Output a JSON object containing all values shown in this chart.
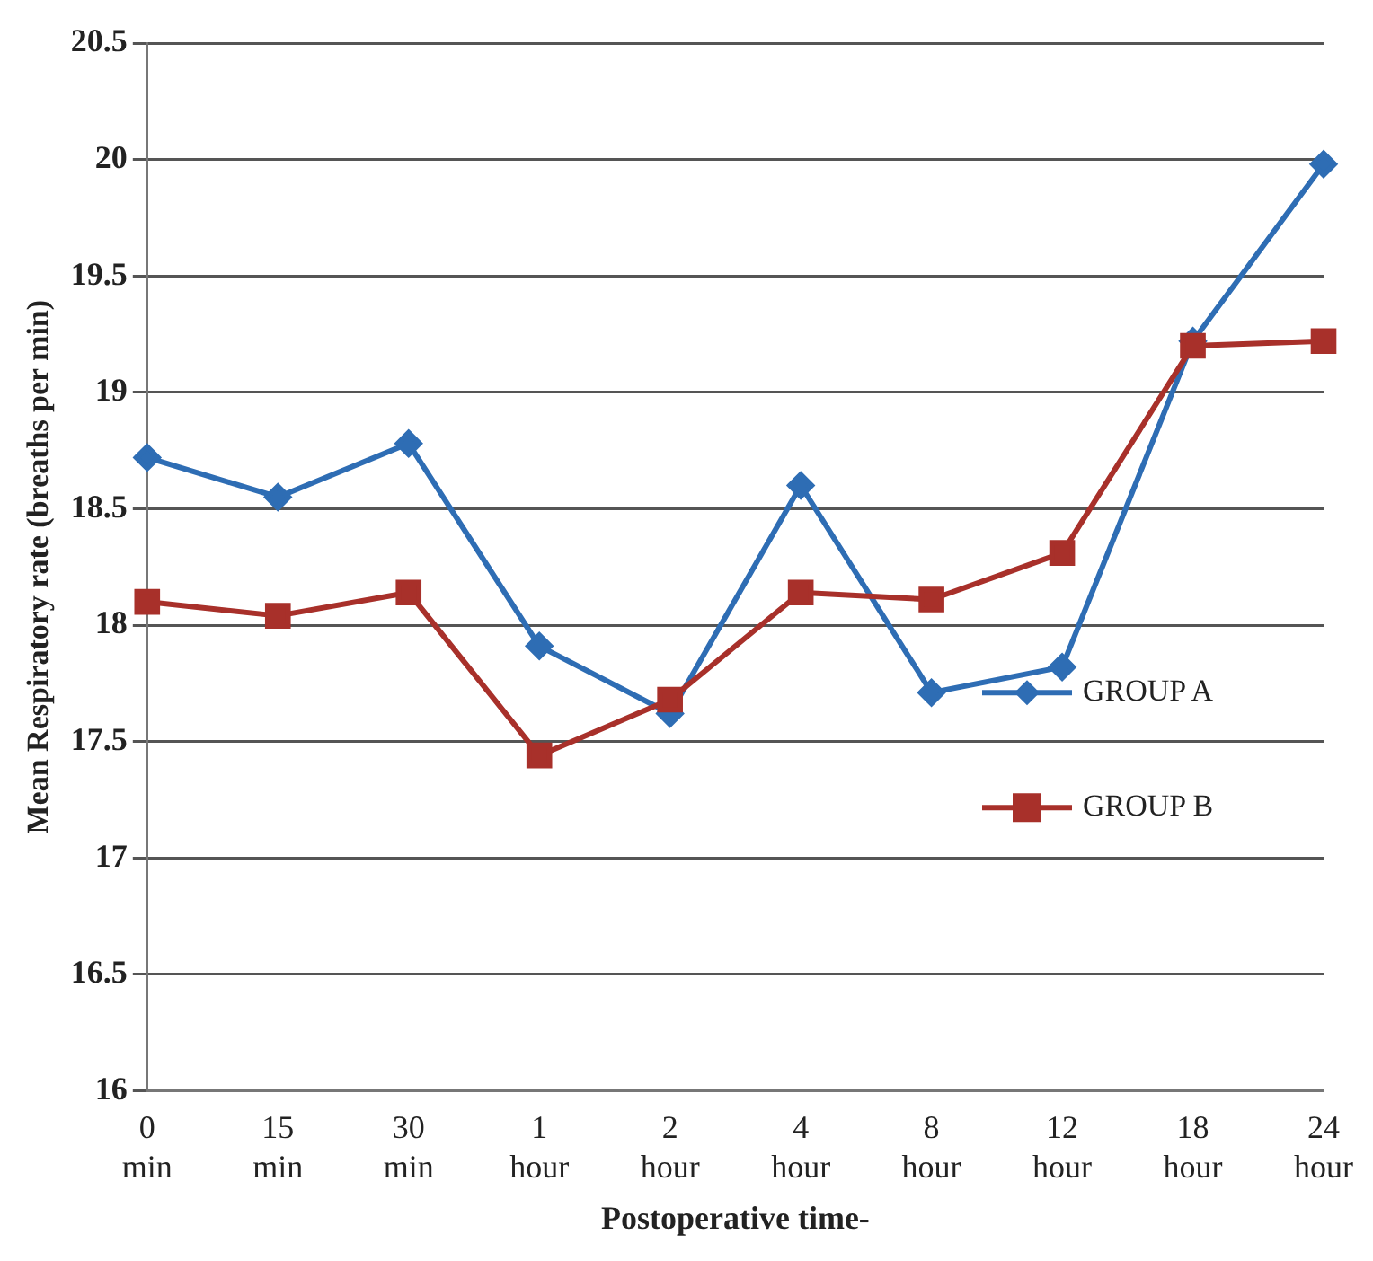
{
  "chart_data": {
    "type": "line",
    "xlabel": "Postoperative time-",
    "ylabel": "Mean Respiratory rate (breaths per min)",
    "categories": [
      "0 min",
      "15 min",
      "30 min",
      "1 hour",
      "2 hour",
      "4 hour",
      "8 hour",
      "12 hour",
      "18 hour",
      "24 hour"
    ],
    "series": [
      {
        "name": "GROUP A",
        "color": "#2e6db4",
        "marker": "diamond",
        "values": [
          18.72,
          18.55,
          18.78,
          17.91,
          17.62,
          18.6,
          17.71,
          17.82,
          19.22,
          19.98
        ]
      },
      {
        "name": "GROUP B",
        "color": "#a8302a",
        "marker": "square",
        "values": [
          18.1,
          18.04,
          18.14,
          17.44,
          17.68,
          18.14,
          18.11,
          18.31,
          19.2,
          19.22
        ]
      }
    ],
    "ylim": [
      16,
      20.5
    ],
    "yticks": [
      16,
      16.5,
      17,
      17.5,
      18,
      18.5,
      19,
      19.5,
      20,
      20.5
    ],
    "grid": "y",
    "legend": "right"
  }
}
